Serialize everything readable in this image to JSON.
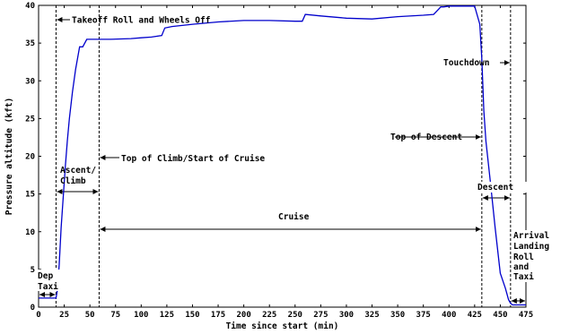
{
  "chart_data": {
    "type": "line",
    "xlabel": "Time since start (min)",
    "ylabel": "Pressure altitude (kft)",
    "xlim": [
      0,
      475
    ],
    "ylim": [
      0,
      40
    ],
    "xticks": [
      0,
      25,
      50,
      75,
      100,
      125,
      150,
      175,
      200,
      225,
      250,
      275,
      300,
      325,
      350,
      375,
      400,
      425,
      450,
      475
    ],
    "yticks": [
      0,
      5,
      10,
      15,
      20,
      25,
      30,
      35,
      40
    ],
    "grid": false,
    "series": [
      {
        "color": "#0000cc",
        "x": [
          0,
          17,
          18,
          20,
          22,
          24,
          26,
          28,
          30,
          33,
          36,
          40,
          43,
          47,
          50,
          55,
          58,
          70,
          90,
          100,
          110,
          120,
          123,
          130,
          150,
          175,
          200,
          225,
          250,
          257,
          260,
          275,
          300,
          325,
          350,
          375,
          385,
          390,
          392,
          395,
          400,
          425,
          430,
          432,
          434,
          436,
          440,
          445,
          450,
          455,
          458,
          460,
          462,
          470,
          475
        ],
        "y": [
          1.2,
          1.2,
          2.0,
          5.5,
          10.5,
          14.5,
          18.5,
          22.0,
          25.0,
          28.5,
          31.5,
          34.5,
          34.5,
          35.5,
          35.5,
          35.5,
          35.5,
          35.5,
          35.6,
          35.7,
          35.8,
          36.0,
          37.0,
          37.2,
          37.5,
          37.8,
          38.0,
          38.0,
          37.9,
          37.9,
          38.8,
          38.6,
          38.3,
          38.2,
          38.5,
          38.7,
          38.8,
          39.5,
          39.8,
          39.8,
          39.9,
          39.9,
          37.5,
          33.0,
          26.0,
          22.0,
          17.0,
          10.5,
          4.5,
          2.5,
          1.0,
          0.5,
          0.3,
          0.3,
          0.3
        ]
      }
    ],
    "vlines": [
      0,
      17,
      59,
      432,
      460
    ],
    "annotations": [
      {
        "text": "Takeoff Roll and Wheels Off"
      },
      {
        "text": "Top of Climb/Start of Cruise"
      },
      {
        "text": "Ascent/"
      },
      {
        "text": "Climb"
      },
      {
        "text": "Cruise"
      },
      {
        "text": "Top of Descent"
      },
      {
        "text": "Touchdown"
      },
      {
        "text": "Descent"
      },
      {
        "text": "Dep"
      },
      {
        "text": "Taxi"
      },
      {
        "text": "Arrival"
      },
      {
        "text": "Landing"
      },
      {
        "text": "Roll"
      },
      {
        "text": "and"
      },
      {
        "text": "Taxi"
      }
    ]
  }
}
